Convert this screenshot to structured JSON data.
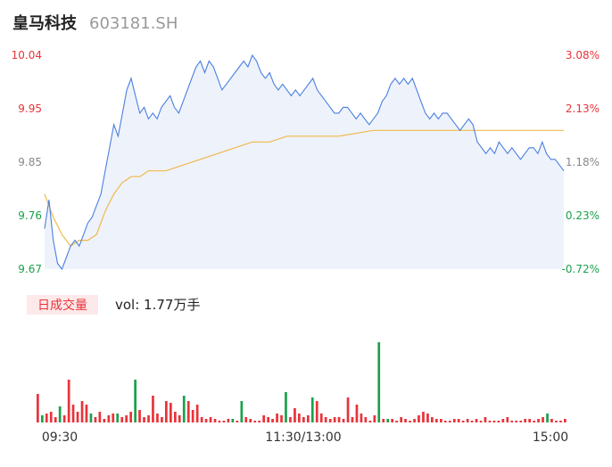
{
  "header": {
    "stock_name": "皇马科技",
    "stock_code": "603181.SH"
  },
  "colors": {
    "price_line": "#4a7fe0",
    "price_fill": "#eef2fb",
    "avg_line": "#f0b94a",
    "up": "#e8333a",
    "down": "#1aa14b",
    "neutral": "#888888",
    "vol_up": "#e8333a",
    "vol_down": "#1aa14b",
    "badge_bg": "#fde9e9",
    "badge_text": "#e8333a"
  },
  "price_axis": {
    "ticks": [
      "10.04",
      "9.95",
      "9.85",
      "9.76",
      "9.67"
    ],
    "tick_colors": [
      "up",
      "up",
      "neutral",
      "down",
      "down"
    ],
    "pct_ticks": [
      "3.08%",
      "2.13%",
      "1.18%",
      "0.23%",
      "-0.72%"
    ],
    "pct_colors": [
      "up",
      "up",
      "neutral",
      "down",
      "down"
    ]
  },
  "volume_panel": {
    "badge": "日成交量",
    "vol_text": "vol: 1.77万手"
  },
  "time_axis": {
    "labels": [
      "09:30",
      "11:30/13:00",
      "15:00"
    ]
  },
  "chart_data": {
    "type": "line",
    "ylim": [
      9.67,
      10.04
    ],
    "x_range": [
      0,
      240
    ],
    "series": [
      {
        "role": "price",
        "x": [
          0,
          2,
          4,
          6,
          8,
          10,
          12,
          14,
          16,
          18,
          20,
          22,
          24,
          26,
          28,
          30,
          32,
          34,
          36,
          38,
          40,
          42,
          44,
          46,
          48,
          50,
          52,
          54,
          56,
          58,
          60,
          62,
          64,
          66,
          68,
          70,
          72,
          74,
          76,
          78,
          80,
          82,
          84,
          86,
          88,
          90,
          92,
          94,
          96,
          98,
          100,
          102,
          104,
          106,
          108,
          110,
          112,
          114,
          116,
          118,
          120,
          122,
          124,
          126,
          128,
          130,
          132,
          134,
          136,
          138,
          140,
          142,
          144,
          146,
          148,
          150,
          152,
          154,
          156,
          158,
          160,
          162,
          164,
          166,
          168,
          170,
          172,
          174,
          176,
          178,
          180,
          182,
          184,
          186,
          188,
          190,
          192,
          194,
          196,
          198,
          200,
          202,
          204,
          206,
          208,
          210,
          212,
          214,
          216,
          218,
          220,
          222,
          224,
          226,
          228,
          230,
          232,
          234,
          236,
          238,
          240
        ],
        "values": [
          9.74,
          9.79,
          9.72,
          9.68,
          9.67,
          9.69,
          9.71,
          9.72,
          9.71,
          9.73,
          9.75,
          9.76,
          9.78,
          9.8,
          9.84,
          9.88,
          9.92,
          9.9,
          9.94,
          9.98,
          10.0,
          9.97,
          9.94,
          9.95,
          9.93,
          9.94,
          9.93,
          9.95,
          9.96,
          9.97,
          9.95,
          9.94,
          9.96,
          9.98,
          10.0,
          10.02,
          10.03,
          10.01,
          10.03,
          10.02,
          10.0,
          9.98,
          9.99,
          10.0,
          10.01,
          10.02,
          10.03,
          10.02,
          10.04,
          10.03,
          10.01,
          10.0,
          10.01,
          9.99,
          9.98,
          9.99,
          9.98,
          9.97,
          9.98,
          9.97,
          9.98,
          9.99,
          10.0,
          9.98,
          9.97,
          9.96,
          9.95,
          9.94,
          9.94,
          9.95,
          9.95,
          9.94,
          9.93,
          9.94,
          9.93,
          9.92,
          9.93,
          9.94,
          9.96,
          9.97,
          9.99,
          10.0,
          9.99,
          10.0,
          9.99,
          10.0,
          9.98,
          9.96,
          9.94,
          9.93,
          9.94,
          9.93,
          9.94,
          9.94,
          9.93,
          9.92,
          9.91,
          9.92,
          9.93,
          9.92,
          9.89,
          9.88,
          9.87,
          9.88,
          9.87,
          9.89,
          9.88,
          9.87,
          9.88,
          9.87,
          9.86,
          9.87,
          9.88,
          9.88,
          9.87,
          9.89,
          9.87,
          9.86,
          9.86,
          9.85,
          9.84
        ]
      },
      {
        "role": "average",
        "x": [
          0,
          4,
          8,
          12,
          16,
          20,
          24,
          28,
          32,
          36,
          40,
          44,
          48,
          56,
          64,
          72,
          80,
          88,
          96,
          104,
          112,
          120,
          136,
          152,
          168,
          184,
          200,
          216,
          232,
          240
        ],
        "values": [
          9.8,
          9.76,
          9.73,
          9.71,
          9.72,
          9.72,
          9.73,
          9.77,
          9.8,
          9.82,
          9.83,
          9.83,
          9.84,
          9.84,
          9.85,
          9.86,
          9.87,
          9.88,
          9.89,
          9.89,
          9.9,
          9.9,
          9.9,
          9.91,
          9.91,
          9.91,
          9.91,
          9.91,
          9.91,
          9.91
        ]
      }
    ],
    "volume": {
      "count": 120,
      "values": [
        32,
        8,
        10,
        12,
        6,
        18,
        8,
        48,
        20,
        12,
        24,
        20,
        10,
        6,
        12,
        4,
        8,
        10,
        10,
        6,
        8,
        12,
        48,
        14,
        6,
        8,
        30,
        10,
        6,
        24,
        22,
        12,
        8,
        30,
        24,
        14,
        20,
        6,
        4,
        6,
        4,
        2,
        2,
        4,
        4,
        2,
        24,
        6,
        4,
        2,
        2,
        8,
        6,
        4,
        10,
        8,
        34,
        6,
        16,
        10,
        6,
        8,
        28,
        24,
        10,
        6,
        4,
        6,
        6,
        4,
        28,
        6,
        20,
        10,
        6,
        2,
        8,
        90,
        4,
        4,
        4,
        2,
        6,
        4,
        2,
        4,
        8,
        12,
        10,
        6,
        4,
        4,
        2,
        2,
        4,
        4,
        2,
        4,
        2,
        4,
        2,
        6,
        2,
        2,
        2,
        4,
        6,
        2,
        2,
        2,
        4,
        4,
        2,
        4,
        6,
        10,
        4,
        2,
        2,
        4
      ],
      "colors": [
        "up",
        "down",
        "up",
        "up",
        "up",
        "down",
        "up",
        "up",
        "up",
        "up",
        "up",
        "up",
        "down",
        "up",
        "up",
        "up",
        "up",
        "up",
        "down",
        "up",
        "up",
        "up",
        "down",
        "up",
        "up",
        "up",
        "up",
        "up",
        "up",
        "up",
        "up",
        "up",
        "up",
        "down",
        "up",
        "up",
        "up",
        "up",
        "up",
        "up",
        "up",
        "up",
        "up",
        "up",
        "down",
        "up",
        "down",
        "up",
        "up",
        "up",
        "up",
        "up",
        "up",
        "up",
        "up",
        "up",
        "down",
        "up",
        "up",
        "up",
        "up",
        "up",
        "down",
        "up",
        "up",
        "up",
        "up",
        "up",
        "up",
        "up",
        "up",
        "up",
        "up",
        "up",
        "up",
        "up",
        "up",
        "down",
        "up",
        "down",
        "up",
        "up",
        "up",
        "up",
        "up",
        "up",
        "up",
        "up",
        "up",
        "up",
        "up",
        "up",
        "up",
        "up",
        "up",
        "up",
        "up",
        "up",
        "up",
        "up",
        "up",
        "up",
        "up",
        "up",
        "up",
        "up",
        "up",
        "up",
        "up",
        "up",
        "up",
        "up",
        "up",
        "up",
        "up",
        "down",
        "up",
        "up",
        "up",
        "up"
      ]
    }
  }
}
